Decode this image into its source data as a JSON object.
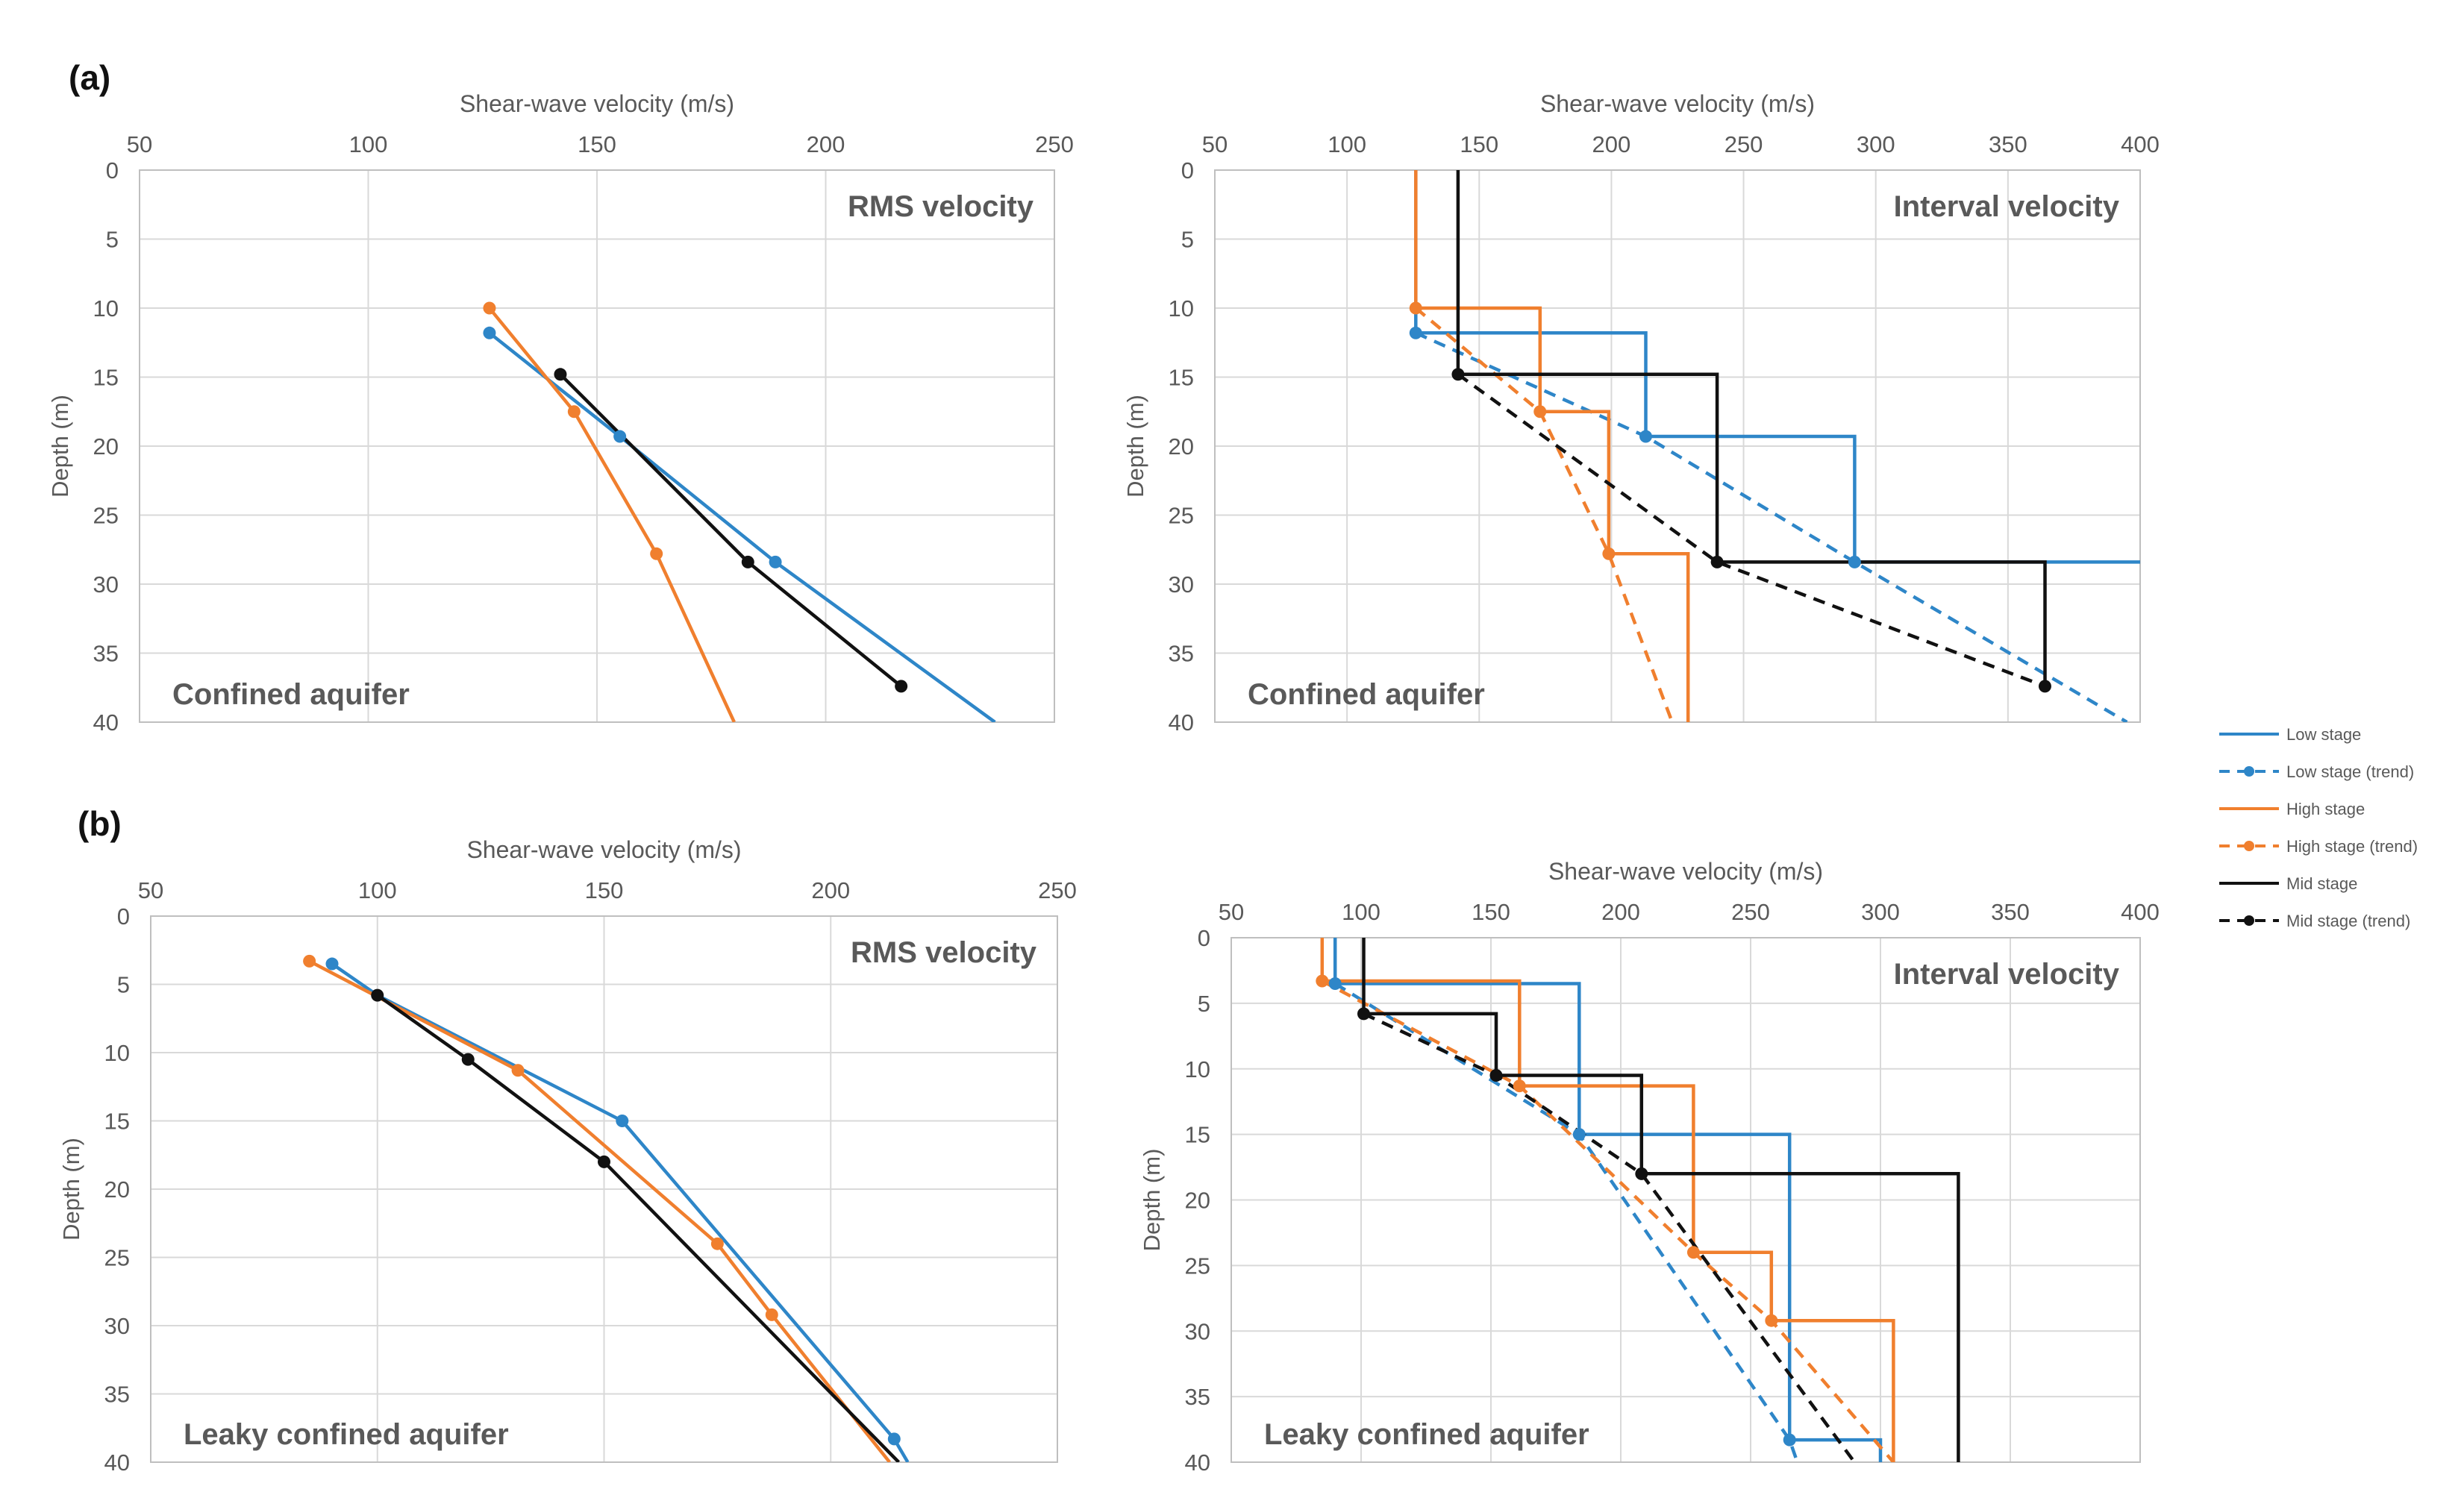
{
  "panel_labels": [
    "(a)",
    "(b)"
  ],
  "colors": {
    "low": "#2E86C8",
    "high": "#F07F2E",
    "mid": "#111111",
    "grid": "#d9d9d9",
    "axis": "#bfbfbf",
    "text": "#595959"
  },
  "legend": [
    {
      "key": "low",
      "label": "Low stage",
      "dashed": false
    },
    {
      "key": "low",
      "label": "Low stage (trend)",
      "dashed": true
    },
    {
      "key": "high",
      "label": "High stage",
      "dashed": false
    },
    {
      "key": "high",
      "label": "High stage (trend)",
      "dashed": true
    },
    {
      "key": "mid",
      "label": "Mid stage",
      "dashed": false
    },
    {
      "key": "mid",
      "label": "Mid stage (trend)",
      "dashed": true
    }
  ],
  "chart_data": [
    {
      "id": "a-rms",
      "type": "line",
      "title": "RMS velocity",
      "annotation": "Confined aquifer",
      "xlabel": "Shear-wave velocity (m/s)",
      "ylabel": "Depth (m)",
      "xlim": [
        50,
        250
      ],
      "ylim": [
        0,
        40
      ],
      "xticks": [
        50,
        100,
        150,
        200,
        250
      ],
      "yticks": [
        0,
        5,
        10,
        15,
        20,
        25,
        30,
        35,
        40
      ],
      "series": [
        {
          "name": "Low stage (trend)",
          "key": "low",
          "dashed": false,
          "points": [
            [
              126.5,
              11.8
            ],
            [
              155,
              19.3
            ],
            [
              189,
              28.4
            ],
            [
              237,
              40
            ]
          ],
          "markers": [
            [
              126.5,
              11.8
            ],
            [
              155,
              19.3
            ],
            [
              189,
              28.4
            ]
          ]
        },
        {
          "name": "High stage (trend)",
          "key": "high",
          "dashed": false,
          "points": [
            [
              126.5,
              10
            ],
            [
              145,
              17.5
            ],
            [
              163,
              27.8
            ],
            [
              180,
              40
            ]
          ],
          "markers": [
            [
              126.5,
              10
            ],
            [
              145,
              17.5
            ],
            [
              163,
              27.8
            ]
          ]
        },
        {
          "name": "Mid stage (trend)",
          "key": "mid",
          "dashed": false,
          "points": [
            [
              142,
              14.8
            ],
            [
              183,
              28.4
            ],
            [
              216.5,
              37.4
            ]
          ],
          "markers": [
            [
              142,
              14.8
            ],
            [
              183,
              28.4
            ],
            [
              216.5,
              37.4
            ]
          ]
        }
      ]
    },
    {
      "id": "a-int",
      "type": "line",
      "title": "Interval velocity",
      "annotation": "Confined aquifer",
      "xlabel": "Shear-wave velocity (m/s)",
      "ylabel": "Depth (m)",
      "xlim": [
        50,
        400
      ],
      "ylim": [
        0,
        40
      ],
      "xticks": [
        50,
        100,
        150,
        200,
        250,
        300,
        350,
        400
      ],
      "yticks": [
        0,
        5,
        10,
        15,
        20,
        25,
        30,
        35,
        40
      ],
      "series": [
        {
          "name": "Low stage",
          "key": "low",
          "dashed": false,
          "points": [
            [
              126,
              0
            ],
            [
              126,
              11.8
            ],
            [
              213,
              11.8
            ],
            [
              213,
              19.3
            ],
            [
              292,
              19.3
            ],
            [
              292,
              28.4
            ],
            [
              400,
              28.4
            ]
          ],
          "markers": []
        },
        {
          "name": "Low stage (trend)",
          "key": "low",
          "dashed": true,
          "points": [
            [
              126,
              11.8
            ],
            [
              213,
              19.3
            ],
            [
              292,
              28.4
            ],
            [
              395,
              40
            ]
          ],
          "markers": [
            [
              126,
              11.8
            ],
            [
              213,
              19.3
            ],
            [
              292,
              28.4
            ]
          ]
        },
        {
          "name": "High stage",
          "key": "high",
          "dashed": false,
          "points": [
            [
              126,
              0
            ],
            [
              126,
              10
            ],
            [
              173,
              10
            ],
            [
              173,
              17.5
            ],
            [
              199,
              17.5
            ],
            [
              199,
              27.8
            ],
            [
              229,
              27.8
            ],
            [
              229,
              40
            ]
          ],
          "markers": []
        },
        {
          "name": "High stage (trend)",
          "key": "high",
          "dashed": true,
          "points": [
            [
              126,
              10
            ],
            [
              173,
              17.5
            ],
            [
              199,
              27.8
            ],
            [
              223,
              40
            ]
          ],
          "markers": [
            [
              126,
              10
            ],
            [
              173,
              17.5
            ],
            [
              199,
              27.8
            ]
          ]
        },
        {
          "name": "Mid stage",
          "key": "mid",
          "dashed": false,
          "points": [
            [
              142,
              0
            ],
            [
              142,
              14.8
            ],
            [
              240,
              14.8
            ],
            [
              240,
              28.4
            ],
            [
              364,
              28.4
            ],
            [
              364,
              37.4
            ]
          ],
          "markers": []
        },
        {
          "name": "Mid stage (trend)",
          "key": "mid",
          "dashed": true,
          "points": [
            [
              142,
              14.8
            ],
            [
              240,
              28.4
            ],
            [
              364,
              37.4
            ]
          ],
          "markers": [
            [
              142,
              14.8
            ],
            [
              240,
              28.4
            ],
            [
              364,
              37.4
            ]
          ]
        }
      ]
    },
    {
      "id": "b-rms",
      "type": "line",
      "title": "RMS velocity",
      "annotation": "Leaky confined aquifer",
      "xlabel": "Shear-wave velocity (m/s)",
      "ylabel": "Depth (m)",
      "xlim": [
        50,
        250
      ],
      "ylim": [
        0,
        40
      ],
      "xticks": [
        50,
        100,
        150,
        200,
        250
      ],
      "yticks": [
        0,
        5,
        10,
        15,
        20,
        25,
        30,
        35,
        40
      ],
      "series": [
        {
          "name": "Low stage (trend)",
          "key": "low",
          "dashed": false,
          "points": [
            [
              90,
              3.5
            ],
            [
              100,
              5.8
            ],
            [
              154,
              15
            ],
            [
              214,
              38.3
            ],
            [
              217,
              40
            ]
          ],
          "markers": [
            [
              90,
              3.5
            ],
            [
              154,
              15
            ],
            [
              214,
              38.3
            ]
          ]
        },
        {
          "name": "High stage (trend)",
          "key": "high",
          "dashed": false,
          "points": [
            [
              85,
              3.3
            ],
            [
              131,
              11.3
            ],
            [
              175,
              24
            ],
            [
              187,
              29.2
            ],
            [
              213,
              40
            ]
          ],
          "markers": [
            [
              85,
              3.3
            ],
            [
              131,
              11.3
            ],
            [
              175,
              24
            ],
            [
              187,
              29.2
            ]
          ]
        },
        {
          "name": "Mid stage (trend)",
          "key": "mid",
          "dashed": false,
          "points": [
            [
              100,
              5.8
            ],
            [
              120,
              10.5
            ],
            [
              150,
              18
            ],
            [
              215,
              40
            ]
          ],
          "markers": [
            [
              100,
              5.8
            ],
            [
              120,
              10.5
            ],
            [
              150,
              18
            ]
          ]
        }
      ]
    },
    {
      "id": "b-int",
      "type": "line",
      "title": "Interval velocity",
      "annotation": "Leaky confined aquifer",
      "xlabel": "Shear-wave velocity (m/s)",
      "ylabel": "Depth (m)",
      "xlim": [
        50,
        400
      ],
      "ylim": [
        0,
        40
      ],
      "xticks": [
        50,
        100,
        150,
        200,
        250,
        300,
        350,
        400
      ],
      "yticks": [
        0,
        5,
        10,
        15,
        20,
        25,
        30,
        35,
        40
      ],
      "series": [
        {
          "name": "Low stage",
          "key": "low",
          "dashed": false,
          "points": [
            [
              90,
              0
            ],
            [
              90,
              3.5
            ],
            [
              184,
              3.5
            ],
            [
              184,
              15
            ],
            [
              265,
              15
            ],
            [
              265,
              38.3
            ],
            [
              300,
              38.3
            ],
            [
              300,
              40
            ]
          ],
          "markers": []
        },
        {
          "name": "Low stage (trend)",
          "key": "low",
          "dashed": true,
          "points": [
            [
              90,
              3.5
            ],
            [
              184,
              15
            ],
            [
              265,
              38.3
            ],
            [
              268,
              40
            ]
          ],
          "markers": [
            [
              90,
              3.5
            ],
            [
              184,
              15
            ],
            [
              265,
              38.3
            ]
          ]
        },
        {
          "name": "High stage",
          "key": "high",
          "dashed": false,
          "points": [
            [
              85,
              0
            ],
            [
              85,
              3.3
            ],
            [
              161,
              3.3
            ],
            [
              161,
              11.3
            ],
            [
              228,
              11.3
            ],
            [
              228,
              24
            ],
            [
              258,
              24
            ],
            [
              258,
              29.2
            ],
            [
              305,
              29.2
            ],
            [
              305,
              40
            ]
          ],
          "markers": []
        },
        {
          "name": "High stage (trend)",
          "key": "high",
          "dashed": true,
          "points": [
            [
              85,
              3.3
            ],
            [
              161,
              11.3
            ],
            [
              228,
              24
            ],
            [
              258,
              29.2
            ],
            [
              305,
              40
            ]
          ],
          "markers": [
            [
              85,
              3.3
            ],
            [
              161,
              11.3
            ],
            [
              228,
              24
            ],
            [
              258,
              29.2
            ]
          ]
        },
        {
          "name": "Mid stage",
          "key": "mid",
          "dashed": false,
          "points": [
            [
              101,
              0
            ],
            [
              101,
              5.8
            ],
            [
              152,
              5.8
            ],
            [
              152,
              10.5
            ],
            [
              208,
              10.5
            ],
            [
              208,
              18
            ],
            [
              330,
              18
            ],
            [
              330,
              40
            ]
          ],
          "markers": []
        },
        {
          "name": "Mid stage (trend)",
          "key": "mid",
          "dashed": true,
          "points": [
            [
              101,
              5.8
            ],
            [
              152,
              10.5
            ],
            [
              208,
              18
            ],
            [
              290,
              40
            ]
          ],
          "markers": [
            [
              101,
              5.8
            ],
            [
              152,
              10.5
            ],
            [
              208,
              18
            ]
          ]
        }
      ]
    }
  ]
}
